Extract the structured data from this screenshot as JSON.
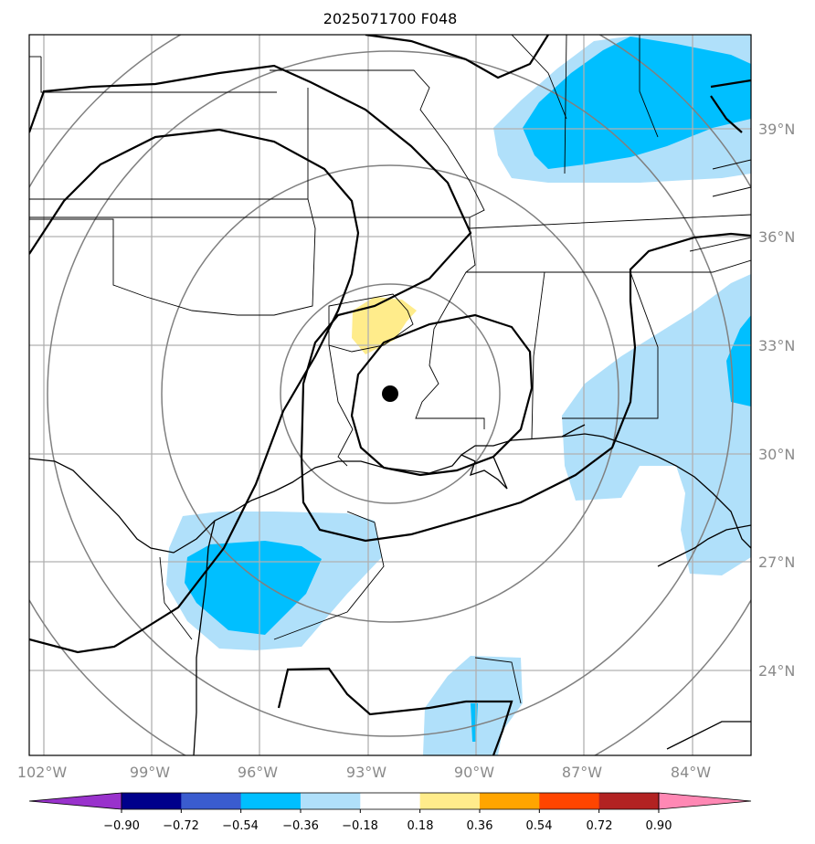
{
  "title": "2025071700 F048",
  "map": {
    "lon_range": [
      -102.5,
      -83.0
    ],
    "lat_range": [
      21.8,
      41.5
    ],
    "lat_labels": [
      "39°N",
      "36°N",
      "33°N",
      "30°N",
      "27°N",
      "24°N"
    ],
    "lon_labels": [
      "102°W",
      "99°W",
      "96°W",
      "93°W",
      "90°W",
      "87°W",
      "84°W"
    ],
    "center_marker": {
      "lon": -92.3,
      "lat": 31.6
    }
  },
  "colorbar": {
    "ticks": [
      "−0.90",
      "−0.72",
      "−0.54",
      "−0.36",
      "−0.18",
      "0.18",
      "0.36",
      "0.54",
      "0.72",
      "0.90"
    ],
    "colors": [
      "#9932cc",
      "#00008b",
      "#3a5ccf",
      "#00bfff",
      "#b0e0fa",
      "#ffffff",
      "#ffec8b",
      "#ffa500",
      "#ff4500",
      "#b22222",
      "#ff88b4"
    ]
  }
}
